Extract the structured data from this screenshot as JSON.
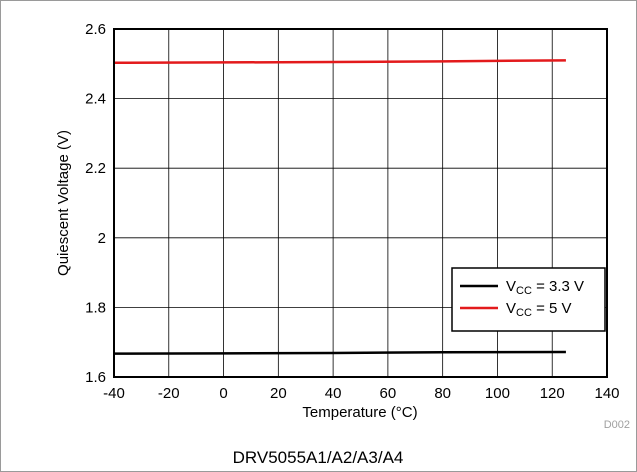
{
  "chart_data": {
    "type": "line",
    "title": "",
    "xlabel": "Temperature (°C)",
    "ylabel": "Quiescent Voltage (V)",
    "xlim": [
      -40,
      140
    ],
    "ylim": [
      1.6,
      2.6
    ],
    "x_ticks": [
      "-40",
      "-20",
      "0",
      "20",
      "40",
      "60",
      "80",
      "100",
      "120",
      "140"
    ],
    "y_ticks": [
      "1.6",
      "1.8",
      "2",
      "2.2",
      "2.4",
      "2.6"
    ],
    "grid": true,
    "legend_position": "lower-right",
    "series": [
      {
        "name": "V_CC = 3.3 V",
        "label_main": "V",
        "label_sub": "CC",
        "label_rest": " = 3.3 V",
        "color": "#000000",
        "x": [
          -40,
          0,
          40,
          80,
          125
        ],
        "y": [
          1.667,
          1.668,
          1.669,
          1.671,
          1.672
        ]
      },
      {
        "name": "V_CC = 5 V",
        "label_main": "V",
        "label_sub": "CC",
        "label_rest": " = 5 V",
        "color": "#e31a1c",
        "x": [
          -40,
          0,
          40,
          80,
          125
        ],
        "y": [
          2.503,
          2.504,
          2.505,
          2.507,
          2.51
        ]
      }
    ]
  },
  "figure_id": "D002",
  "caption": "DRV5055A1/A2/A3/A4"
}
